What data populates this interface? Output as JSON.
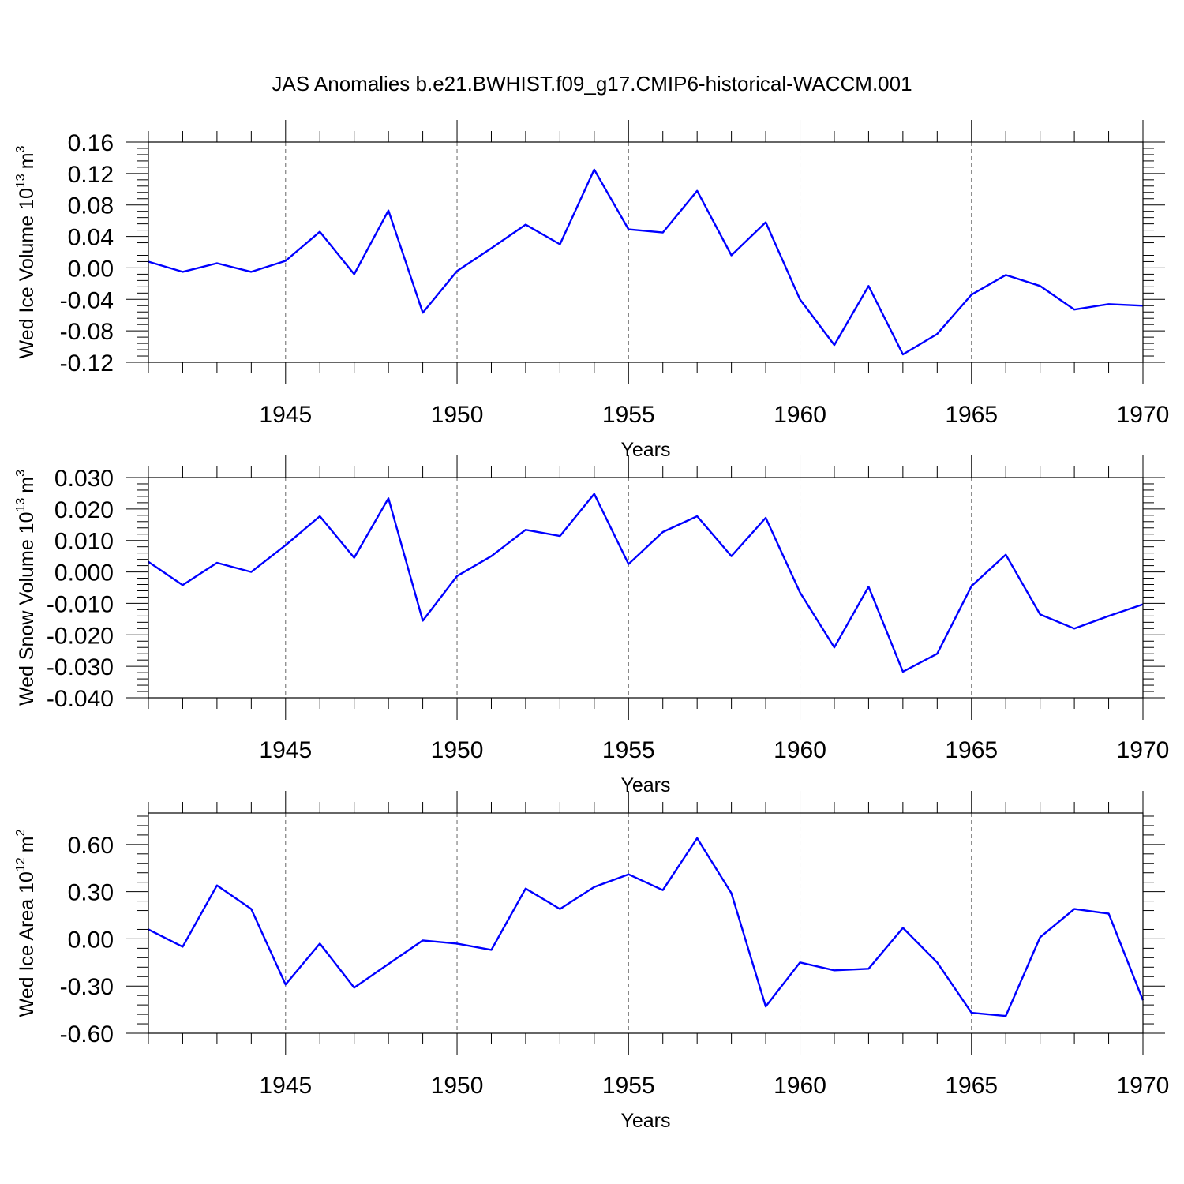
{
  "chart_data": [
    {
      "type": "line",
      "title": "JAS Anomalies b.e21.BWHIST.f09_g17.CMIP6-historical-WACCM.001",
      "xlabel": "Years",
      "ylabel_main": "Wed Ice Volume 10",
      "ylabel_exp": "13",
      "ylabel_unit": "m",
      "ylabel_unit_exp": "3",
      "xlim": [
        1941,
        1970
      ],
      "ylim": [
        -0.12,
        0.16
      ],
      "x_ticks": [
        1945,
        1950,
        1955,
        1960,
        1965,
        1970
      ],
      "y_ticks": [
        -0.12,
        -0.08,
        -0.04,
        0.0,
        0.04,
        0.08,
        0.12,
        0.16
      ],
      "y_tick_labels": [
        "-0.12",
        "-0.08",
        "-0.04",
        "0.00",
        "0.04",
        "0.08",
        "0.12",
        "0.16"
      ],
      "grid": "vertical dashed at major x ticks",
      "series": [
        {
          "name": "Wed Ice Volume",
          "color": "#0000ff",
          "x": [
            1941,
            1942,
            1943,
            1944,
            1945,
            1946,
            1947,
            1948,
            1949,
            1950,
            1951,
            1952,
            1953,
            1954,
            1955,
            1956,
            1957,
            1958,
            1959,
            1960,
            1961,
            1962,
            1963,
            1964,
            1965,
            1966,
            1967,
            1968,
            1969,
            1970
          ],
          "values": [
            0.008,
            -0.005,
            0.006,
            -0.005,
            0.009,
            0.046,
            -0.008,
            0.073,
            -0.057,
            -0.004,
            0.025,
            0.055,
            0.03,
            0.125,
            0.049,
            0.045,
            0.098,
            0.016,
            0.058,
            -0.04,
            -0.098,
            -0.023,
            -0.11,
            -0.084,
            -0.034,
            -0.009,
            -0.023,
            -0.053,
            -0.046,
            -0.048
          ]
        }
      ]
    },
    {
      "type": "line",
      "title": "",
      "xlabel": "Years",
      "ylabel_main": "Wed Snow Volume 10",
      "ylabel_exp": "13",
      "ylabel_unit": "m",
      "ylabel_unit_exp": "3",
      "xlim": [
        1941,
        1970
      ],
      "ylim": [
        -0.04,
        0.03
      ],
      "x_ticks": [
        1945,
        1950,
        1955,
        1960,
        1965,
        1970
      ],
      "y_ticks": [
        -0.04,
        -0.03,
        -0.02,
        -0.01,
        0.0,
        0.01,
        0.02,
        0.03
      ],
      "y_tick_labels": [
        "-0.040",
        "-0.030",
        "-0.020",
        "-0.010",
        "0.000",
        "0.010",
        "0.020",
        "0.030"
      ],
      "grid": "vertical dashed at major x ticks",
      "series": [
        {
          "name": "Wed Snow Volume",
          "color": "#0000ff",
          "x": [
            1941,
            1942,
            1943,
            1944,
            1945,
            1946,
            1947,
            1948,
            1949,
            1950,
            1951,
            1952,
            1953,
            1954,
            1955,
            1956,
            1957,
            1958,
            1959,
            1960,
            1961,
            1962,
            1963,
            1964,
            1965,
            1966,
            1967,
            1968,
            1969,
            1970
          ],
          "values": [
            0.0032,
            -0.0042,
            0.0029,
            0.0,
            0.0085,
            0.0177,
            0.0045,
            0.0234,
            -0.0155,
            -0.0013,
            0.005,
            0.0134,
            0.0114,
            0.0248,
            0.0025,
            0.0127,
            0.0177,
            0.005,
            0.0172,
            -0.0065,
            -0.024,
            -0.0047,
            -0.0317,
            -0.026,
            -0.0045,
            0.0055,
            -0.0135,
            -0.018,
            -0.014,
            -0.0103
          ]
        }
      ]
    },
    {
      "type": "line",
      "title": "",
      "xlabel": "Years",
      "ylabel_main": "Wed Ice Area 10",
      "ylabel_exp": "12",
      "ylabel_unit": "m",
      "ylabel_unit_exp": "2",
      "xlim": [
        1941,
        1970
      ],
      "ylim": [
        -0.6,
        0.8
      ],
      "x_ticks": [
        1945,
        1950,
        1955,
        1960,
        1965,
        1970
      ],
      "y_ticks": [
        -0.6,
        -0.3,
        0.0,
        0.3,
        0.6
      ],
      "y_tick_labels": [
        "-0.60",
        "-0.30",
        "0.00",
        "0.30",
        "0.60"
      ],
      "grid": "vertical dashed at major x ticks",
      "series": [
        {
          "name": "Wed Ice Area",
          "color": "#0000ff",
          "x": [
            1941,
            1942,
            1943,
            1944,
            1945,
            1946,
            1947,
            1948,
            1949,
            1950,
            1951,
            1952,
            1953,
            1954,
            1955,
            1956,
            1957,
            1958,
            1959,
            1960,
            1961,
            1962,
            1963,
            1964,
            1965,
            1966,
            1967,
            1968,
            1969,
            1970
          ],
          "values": [
            0.06,
            -0.05,
            0.34,
            0.19,
            -0.29,
            -0.03,
            -0.31,
            -0.16,
            -0.01,
            -0.03,
            -0.07,
            0.32,
            0.19,
            0.33,
            0.41,
            0.31,
            0.64,
            0.29,
            -0.43,
            -0.15,
            -0.2,
            -0.19,
            0.07,
            -0.15,
            -0.47,
            -0.49,
            0.01,
            0.19,
            0.16,
            -0.39
          ]
        }
      ]
    }
  ]
}
